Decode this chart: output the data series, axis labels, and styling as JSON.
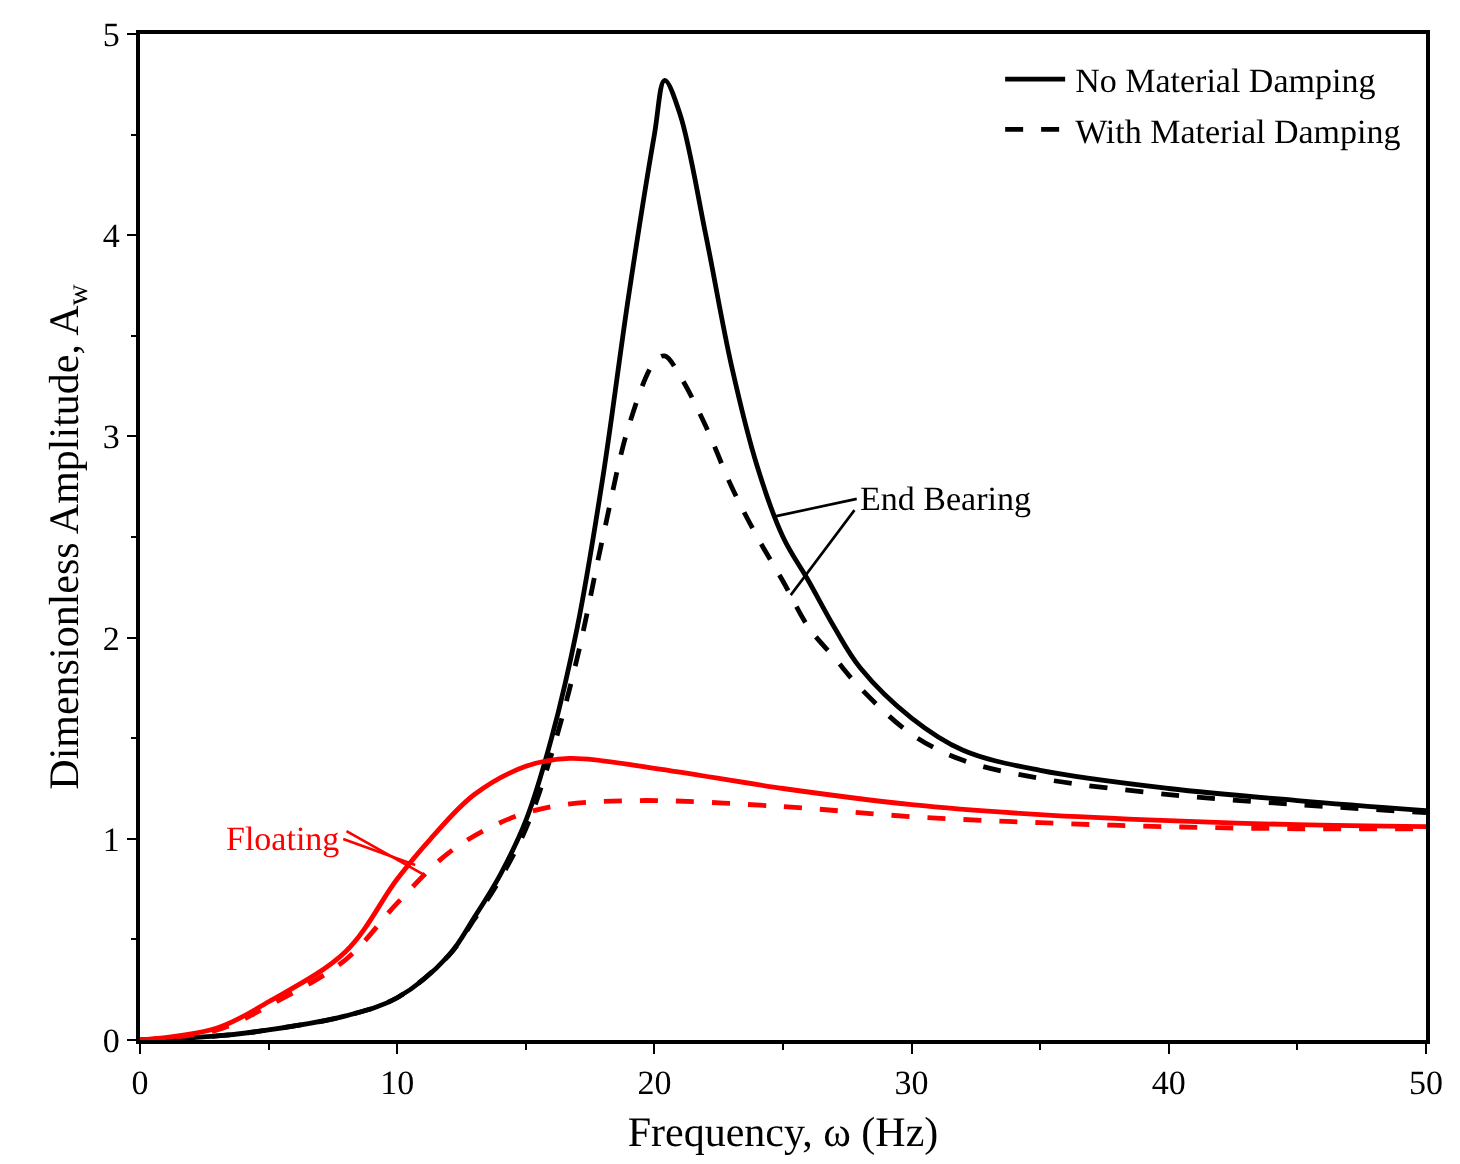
{
  "chart_data": {
    "type": "line",
    "xlabel": "Frequency, ω (Hz)",
    "ylabel": "Dimensionless Amplitude, A$_{w}$",
    "xlim": [
      0,
      50
    ],
    "xticks": [
      0,
      10,
      20,
      30,
      40,
      50
    ],
    "ylim": [
      0,
      5
    ],
    "yticks": [
      0,
      1,
      2,
      3,
      4,
      5
    ],
    "legend": "top right",
    "marker": "none",
    "series": [
      {
        "name": "No Material Damping",
        "color": "#000000",
        "line_style": "solid",
        "x": [
          0,
          3,
          5,
          8,
          10,
          12,
          13,
          14,
          15,
          16,
          17,
          18,
          19,
          20,
          20.4,
          21,
          22,
          23,
          24,
          25,
          26,
          27,
          28,
          30,
          32,
          35,
          40,
          45,
          50
        ],
        "values": [
          0,
          0.02,
          0.05,
          0.12,
          0.21,
          0.42,
          0.61,
          0.82,
          1.09,
          1.5,
          2.05,
          2.8,
          3.7,
          4.5,
          4.77,
          4.6,
          4.0,
          3.35,
          2.85,
          2.5,
          2.28,
          2.05,
          1.85,
          1.6,
          1.44,
          1.34,
          1.25,
          1.19,
          1.14
        ]
      },
      {
        "name": "With Material Damping",
        "color": "#000000",
        "line_style": "dashed",
        "x": [
          0,
          3,
          5,
          8,
          10,
          12,
          13,
          14,
          15,
          16,
          17,
          18,
          19,
          20,
          20.4,
          21,
          22,
          23,
          24,
          25,
          26,
          27,
          28,
          30,
          32,
          35,
          40,
          45,
          50
        ],
        "values": [
          0,
          0.02,
          0.05,
          0.12,
          0.21,
          0.42,
          0.6,
          0.8,
          1.05,
          1.42,
          1.9,
          2.5,
          3.05,
          3.37,
          3.4,
          3.3,
          3.05,
          2.75,
          2.5,
          2.28,
          2.05,
          1.9,
          1.75,
          1.52,
          1.39,
          1.3,
          1.22,
          1.17,
          1.13
        ]
      },
      {
        "color": "#ff0000",
        "line_style": "solid",
        "x": [
          0,
          3,
          5,
          8,
          10,
          11.3,
          13,
          15,
          16.7,
          20,
          25,
          30,
          35,
          40,
          45,
          50
        ],
        "values": [
          0,
          0.06,
          0.19,
          0.44,
          0.8,
          1.0,
          1.22,
          1.36,
          1.4,
          1.35,
          1.25,
          1.17,
          1.12,
          1.09,
          1.07,
          1.06
        ]
      },
      {
        "color": "#ff0000",
        "line_style": "dashed",
        "x": [
          0,
          3,
          5,
          8,
          10,
          12,
          14,
          16,
          19.3,
          25,
          30,
          35,
          40,
          45,
          50
        ],
        "values": [
          0,
          0.05,
          0.17,
          0.4,
          0.68,
          0.93,
          1.08,
          1.16,
          1.19,
          1.16,
          1.11,
          1.08,
          1.06,
          1.05,
          1.05
        ]
      }
    ],
    "annotations": [
      {
        "text": "End Bearing",
        "x": 24.6,
        "y": 2.6
      },
      {
        "text": "Floating",
        "x": 10.7,
        "y": 0.87
      }
    ]
  }
}
